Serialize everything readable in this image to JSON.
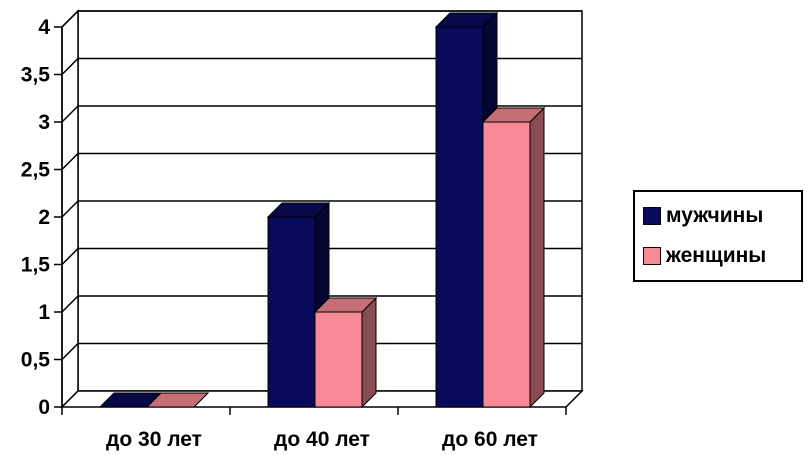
{
  "chart_data": {
    "type": "bar",
    "categories": [
      "до 30 лет",
      "до 40 лет",
      "до 60 лет"
    ],
    "series": [
      {
        "name": "мужчины",
        "values": [
          0,
          2,
          4
        ],
        "color": "#0a0a5a"
      },
      {
        "name": "женщины",
        "values": [
          0,
          1,
          3
        ],
        "color": "#f78a94"
      }
    ],
    "ylim": [
      0,
      4
    ],
    "yticks": [
      "0",
      "0,5",
      "1",
      "1,5",
      "2",
      "2,5",
      "3",
      "3,5",
      "4"
    ],
    "title": "",
    "xlabel": "",
    "ylabel": "",
    "grid": true,
    "legend": "right",
    "style": "3d-column"
  }
}
